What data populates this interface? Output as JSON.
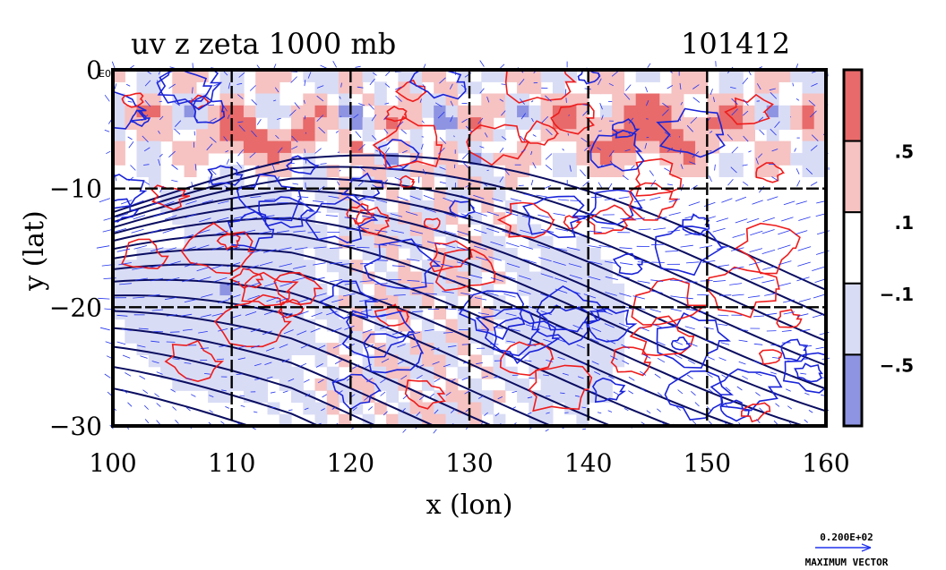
{
  "chart_data": {
    "type": "heatmap",
    "title": "uv z zeta 1000 mb",
    "timestamp_label": "101412",
    "xlabel": "x (lon)",
    "ylabel": "y (lat)",
    "xlim": [
      100,
      160
    ],
    "ylim": [
      -30,
      0
    ],
    "x_ticks": [
      100,
      110,
      120,
      130,
      140,
      150,
      160
    ],
    "x_tick_labels": [
      "100",
      "110",
      "120",
      "130",
      "140",
      "150",
      "160"
    ],
    "y_ticks": [
      0,
      -10,
      -20,
      -30
    ],
    "y_tick_labels": [
      "0",
      "−10",
      "−20",
      "−30"
    ],
    "grid": true,
    "colorbar": {
      "levels": [
        {
          "label": "",
          "color": "#e86a6a"
        },
        {
          "label": ".5",
          "color": "#f6c2c2"
        },
        {
          "label": ".1",
          "color": "#ffffff"
        },
        {
          "label": "−.1",
          "color": "#d9dcf5"
        },
        {
          "label": "−.5",
          "color": "#8e94e2"
        }
      ]
    },
    "series": [
      {
        "name": "zeta positive contour",
        "color": "#ee1c1c"
      },
      {
        "name": "zeta negative contour",
        "color": "#1a24d8"
      },
      {
        "name": "geopotential height z",
        "color": "#0a0d60"
      },
      {
        "name": "wind vectors uv",
        "color": "#2233ee"
      }
    ],
    "vector_legend": {
      "value": "0.200E+02",
      "caption": "MAXIMUM VECTOR"
    },
    "corner_glyph": "E0"
  }
}
